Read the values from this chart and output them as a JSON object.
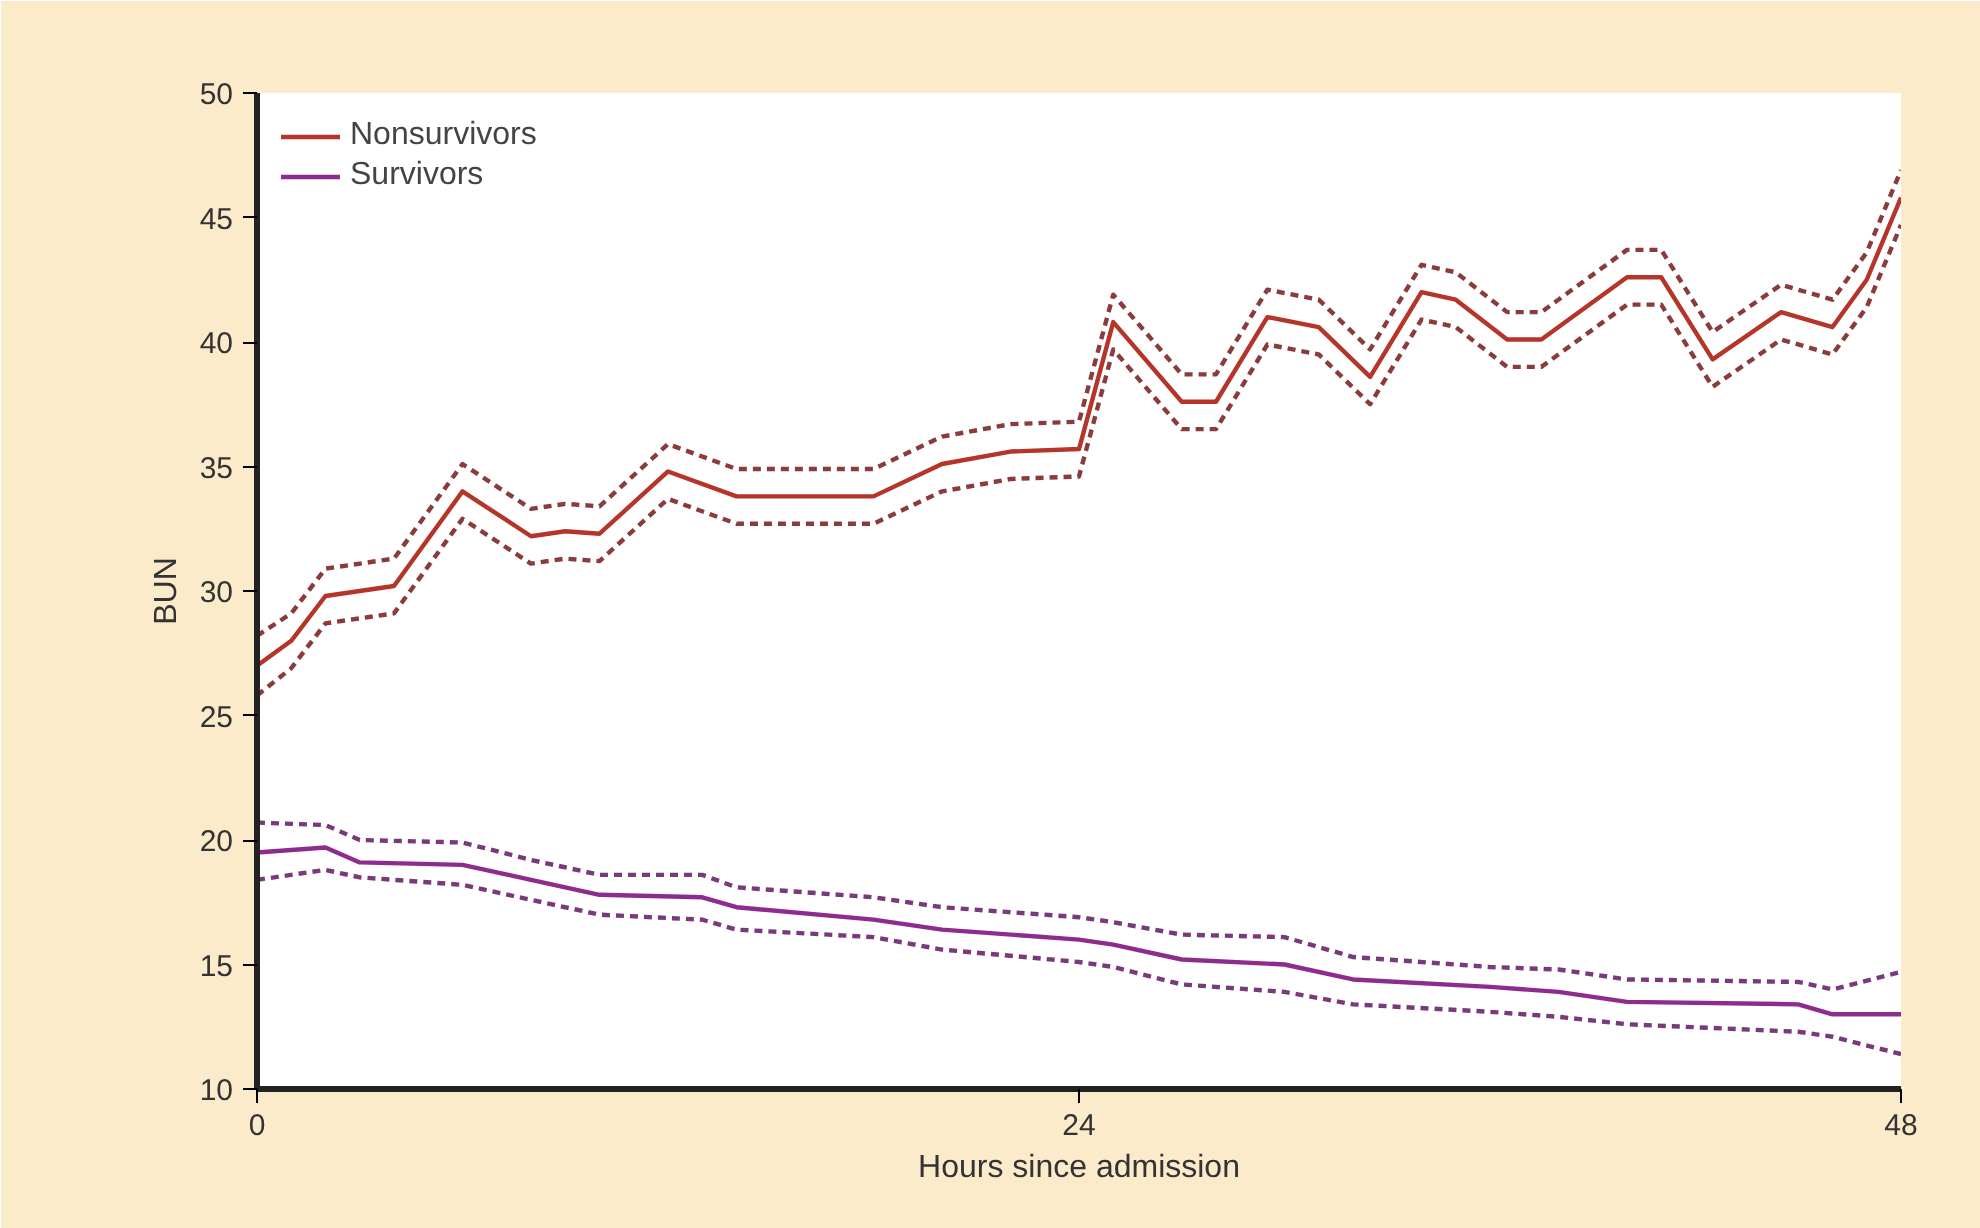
{
  "chart_data": {
    "type": "line",
    "xlabel": "Hours since admission",
    "ylabel": "BUN",
    "xlim": [
      0,
      48
    ],
    "ylim": [
      10,
      50
    ],
    "xticks": [
      0,
      24,
      48
    ],
    "yticks": [
      10,
      15,
      20,
      25,
      30,
      35,
      40,
      45,
      50
    ],
    "grid": false,
    "legend": "top left",
    "marker": "none",
    "line_style": "solid",
    "series": [
      {
        "name": "Nonsurvivors",
        "color": "#b5352a",
        "x": [
          0,
          1,
          2,
          4,
          6,
          8,
          9,
          10,
          12,
          14,
          18,
          20,
          22,
          24,
          25,
          27,
          28,
          29.5,
          31,
          32.5,
          34,
          35,
          36.5,
          37.5,
          40,
          41,
          42.5,
          44.5,
          46,
          47,
          48
        ],
        "values": [
          27,
          28,
          29.8,
          30.2,
          34,
          32.2,
          32.4,
          32.3,
          34.8,
          33.8,
          33.8,
          35.1,
          35.6,
          35.7,
          40.8,
          37.6,
          37.6,
          41,
          40.6,
          38.6,
          42,
          41.7,
          40.1,
          40.1,
          42.6,
          42.6,
          39.3,
          41.2,
          40.6,
          42.5,
          45.8
        ]
      },
      {
        "color": "#8a3b3b",
        "line_style": "dashed",
        "x": [
          0,
          1,
          2,
          4,
          6,
          8,
          9,
          10,
          12,
          14,
          18,
          20,
          22,
          24,
          25,
          27,
          28,
          29.5,
          31,
          32.5,
          34,
          35,
          36.5,
          37.5,
          40,
          41,
          42.5,
          44.5,
          46,
          47,
          48
        ],
        "values": [
          25.8,
          26.9,
          28.7,
          29.1,
          32.9,
          31.1,
          31.3,
          31.2,
          33.7,
          32.7,
          32.7,
          34,
          34.5,
          34.6,
          39.7,
          36.5,
          36.5,
          39.9,
          39.5,
          37.5,
          40.9,
          40.6,
          39,
          39,
          41.5,
          41.5,
          38.2,
          40.1,
          39.5,
          41.4,
          44.7
        ]
      },
      {
        "color": "#8a3b3b",
        "line_style": "dashed",
        "x": [
          0,
          1,
          2,
          4,
          6,
          8,
          9,
          10,
          12,
          14,
          18,
          20,
          22,
          24,
          25,
          27,
          28,
          29.5,
          31,
          32.5,
          34,
          35,
          36.5,
          37.5,
          40,
          41,
          42.5,
          44.5,
          46,
          47,
          48
        ],
        "values": [
          28.2,
          29.1,
          30.9,
          31.3,
          35.1,
          33.3,
          33.5,
          33.4,
          35.9,
          34.9,
          34.9,
          36.2,
          36.7,
          36.8,
          41.9,
          38.7,
          38.7,
          42.1,
          41.7,
          39.7,
          43.1,
          42.8,
          41.2,
          41.2,
          43.7,
          43.7,
          40.4,
          42.3,
          41.7,
          43.6,
          46.9
        ]
      },
      {
        "name": "Survivors",
        "color": "#8e2c8e",
        "x": [
          0,
          2,
          3,
          6,
          8,
          10,
          13,
          14,
          18,
          20,
          24,
          25,
          27,
          30,
          32,
          36,
          38,
          40,
          45,
          46,
          48
        ],
        "values": [
          19.5,
          19.7,
          19.1,
          19.0,
          18.4,
          17.8,
          17.7,
          17.3,
          16.8,
          16.4,
          16.0,
          15.8,
          15.2,
          15.0,
          14.4,
          14.1,
          13.9,
          13.5,
          13.4,
          13.0,
          13.0
        ]
      },
      {
        "color": "#7a3a7a",
        "line_style": "dashed",
        "x": [
          0,
          2,
          3,
          6,
          8,
          10,
          13,
          14,
          18,
          20,
          24,
          25,
          27,
          30,
          32,
          36,
          38,
          40,
          45,
          46,
          48
        ],
        "values": [
          18.4,
          18.8,
          18.5,
          18.2,
          17.6,
          17.0,
          16.8,
          16.4,
          16.1,
          15.6,
          15.1,
          14.9,
          14.2,
          13.9,
          13.4,
          13.1,
          12.9,
          12.6,
          12.3,
          12.1,
          11.4
        ]
      },
      {
        "color": "#7a3a7a",
        "line_style": "dashed",
        "x": [
          0,
          2,
          3,
          6,
          8,
          10,
          13,
          14,
          18,
          20,
          24,
          25,
          27,
          30,
          32,
          36,
          38,
          40,
          45,
          46,
          48
        ],
        "values": [
          20.7,
          20.6,
          20.0,
          19.9,
          19.2,
          18.6,
          18.6,
          18.1,
          17.7,
          17.3,
          16.9,
          16.7,
          16.2,
          16.1,
          15.3,
          14.9,
          14.8,
          14.4,
          14.3,
          14.0,
          14.7
        ]
      }
    ]
  }
}
